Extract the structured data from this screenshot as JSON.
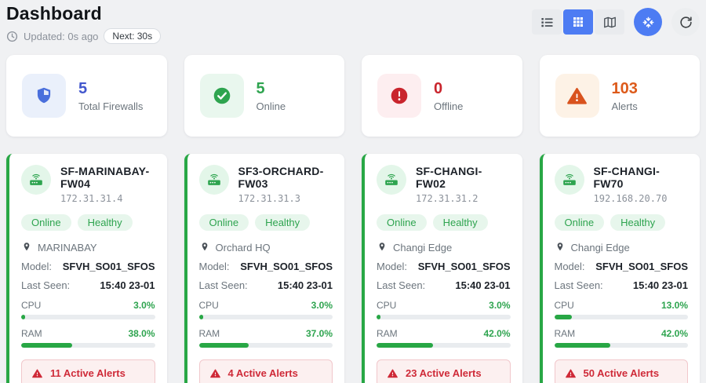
{
  "header": {
    "title": "Dashboard",
    "updated": "Updated: 0s ago",
    "next": "Next: 30s",
    "view_toggle": {
      "active_view": "grid",
      "views": [
        "list",
        "grid",
        "map"
      ]
    }
  },
  "colors": {
    "accent_blue": "#4d7cf3",
    "green": "#28a745",
    "red": "#c9252d",
    "orange": "#dd5a1a",
    "card_border_green": "#28a745",
    "alert_red": "#cf2a38"
  },
  "stats": [
    {
      "value": "5",
      "label": "Total Firewalls",
      "icon": "shield-icon",
      "color": "#4257cd"
    },
    {
      "value": "5",
      "label": "Online",
      "icon": "check-circle-icon",
      "color": "#2ea44f"
    },
    {
      "value": "0",
      "label": "Offline",
      "icon": "alert-circle-icon",
      "color": "#c9252d"
    },
    {
      "value": "103",
      "label": "Alerts",
      "icon": "warning-triangle-icon",
      "color": "#dd5a1a"
    }
  ],
  "labels": {
    "model": "Model:",
    "last_seen": "Last Seen:",
    "cpu": "CPU",
    "ram": "RAM"
  },
  "firewalls": [
    {
      "name": "SF-MARINABAY-FW04",
      "ip": "172.31.31.4",
      "status": "Online",
      "health": "Healthy",
      "location": "MARINABAY",
      "model": "SFVH_SO01_SFOS",
      "last_seen": "15:40 23-01",
      "cpu": "3.0%",
      "cpu_pct": 3,
      "ram": "38.0%",
      "ram_pct": 38,
      "alerts": "11 Active Alerts"
    },
    {
      "name": "SF3-ORCHARD-FW03",
      "ip": "172.31.31.3",
      "status": "Online",
      "health": "Healthy",
      "location": "Orchard HQ",
      "model": "SFVH_SO01_SFOS",
      "last_seen": "15:40 23-01",
      "cpu": "3.0%",
      "cpu_pct": 3,
      "ram": "37.0%",
      "ram_pct": 37,
      "alerts": "4 Active Alerts"
    },
    {
      "name": "SF-CHANGI-FW02",
      "ip": "172.31.31.2",
      "status": "Online",
      "health": "Healthy",
      "location": "Changi Edge",
      "model": "SFVH_SO01_SFOS",
      "last_seen": "15:40 23-01",
      "cpu": "3.0%",
      "cpu_pct": 3,
      "ram": "42.0%",
      "ram_pct": 42,
      "alerts": "23 Active Alerts"
    },
    {
      "name": "SF-CHANGI-FW70",
      "ip": "192.168.20.70",
      "status": "Online",
      "health": "Healthy",
      "location": "Changi Edge",
      "model": "SFVH_SO01_SFOS",
      "last_seen": "15:40 23-01",
      "cpu": "13.0%",
      "cpu_pct": 13,
      "ram": "42.0%",
      "ram_pct": 42,
      "alerts": "50 Active Alerts"
    }
  ]
}
